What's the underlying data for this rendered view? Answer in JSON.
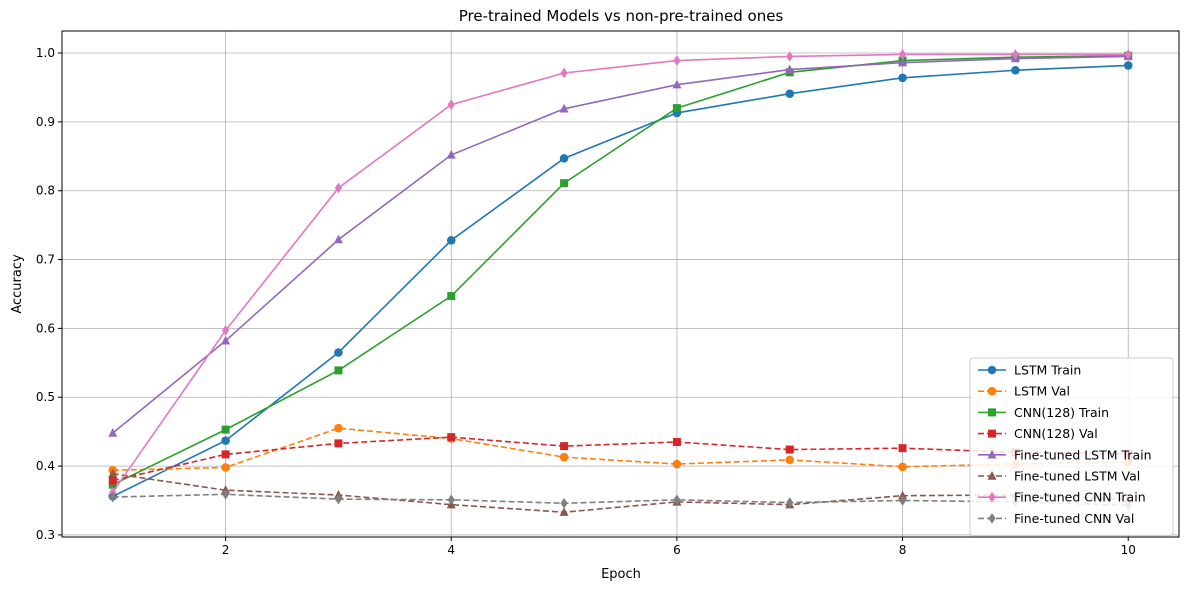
{
  "chart_data": {
    "type": "line",
    "title": "Pre-trained Models vs non-pre-trained ones",
    "xlabel": "Epoch",
    "ylabel": "Accuracy",
    "xlim": [
      0.55,
      10.45
    ],
    "ylim": [
      0.297,
      1.032
    ],
    "x_ticks": [
      2,
      4,
      6,
      8,
      10
    ],
    "y_ticks": [
      0.3,
      0.4,
      0.5,
      0.6,
      0.7,
      0.8,
      0.9,
      1.0
    ],
    "x_tick_labels": [
      "2",
      "4",
      "6",
      "8",
      "10"
    ],
    "y_tick_labels": [
      "0.3",
      "0.4",
      "0.5",
      "0.6",
      "0.7",
      "0.8",
      "0.9",
      "1.0"
    ],
    "grid": true,
    "legend_position": "lower-right",
    "x": [
      1,
      2,
      3,
      4,
      5,
      6,
      7,
      8,
      9,
      10
    ],
    "series": [
      {
        "name": "LSTM Train",
        "color": "#1f77b4",
        "dashed": false,
        "marker": "circle",
        "values": [
          0.356,
          0.437,
          0.565,
          0.728,
          0.847,
          0.913,
          0.941,
          0.964,
          0.975,
          0.982
        ]
      },
      {
        "name": "LSTM Val",
        "color": "#ff7f0e",
        "dashed": true,
        "marker": "circle",
        "values": [
          0.394,
          0.398,
          0.455,
          0.44,
          0.413,
          0.403,
          0.409,
          0.399,
          0.403,
          0.406
        ]
      },
      {
        "name": "CNN(128) Train",
        "color": "#2ca02c",
        "dashed": false,
        "marker": "square",
        "values": [
          0.373,
          0.453,
          0.539,
          0.647,
          0.811,
          0.92,
          0.972,
          0.989,
          0.994,
          0.996
        ]
      },
      {
        "name": "CNN(128) Val",
        "color": "#d62728",
        "dashed": true,
        "marker": "square",
        "values": [
          0.379,
          0.417,
          0.433,
          0.442,
          0.429,
          0.435,
          0.424,
          0.426,
          0.42,
          0.418
        ]
      },
      {
        "name": "Fine-tuned LSTM Train",
        "color": "#9467bd",
        "dashed": false,
        "marker": "triangle",
        "values": [
          0.448,
          0.582,
          0.729,
          0.852,
          0.919,
          0.954,
          0.976,
          0.986,
          0.992,
          0.995
        ]
      },
      {
        "name": "Fine-tuned LSTM Val",
        "color": "#8c564b",
        "dashed": true,
        "marker": "triangle",
        "values": [
          0.389,
          0.365,
          0.358,
          0.344,
          0.333,
          0.348,
          0.344,
          0.357,
          0.358,
          0.352
        ]
      },
      {
        "name": "Fine-tuned CNN Train",
        "color": "#e377c2",
        "dashed": false,
        "marker": "diamond",
        "values": [
          0.362,
          0.597,
          0.804,
          0.925,
          0.971,
          0.989,
          0.995,
          0.998,
          0.998,
          0.998
        ]
      },
      {
        "name": "Fine-tuned CNN Val",
        "color": "#7f7f7f",
        "dashed": true,
        "marker": "diamond",
        "values": [
          0.355,
          0.359,
          0.352,
          0.351,
          0.346,
          0.351,
          0.347,
          0.35,
          0.348,
          0.343
        ]
      }
    ]
  }
}
